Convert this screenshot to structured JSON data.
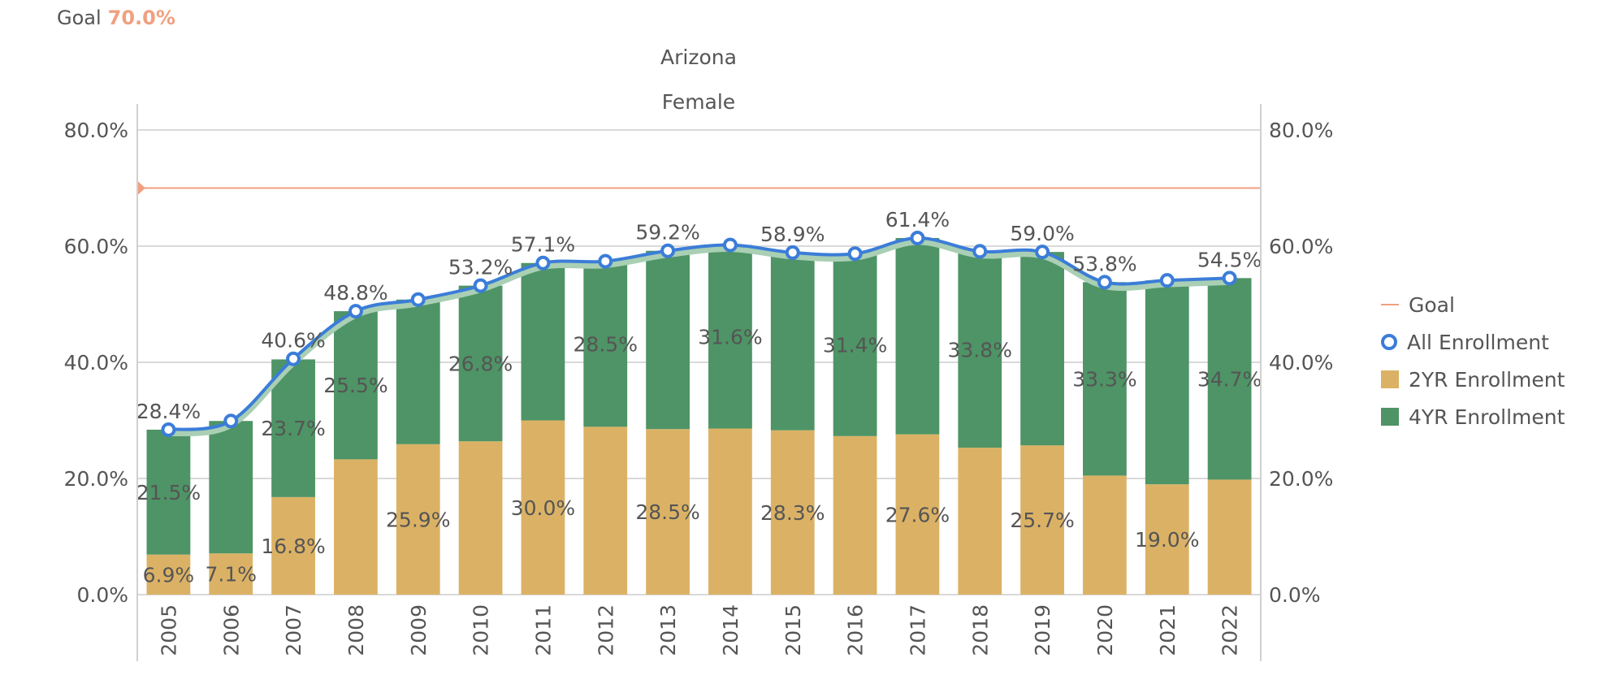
{
  "goal_readout": {
    "label": "Goal",
    "value": "70.0%"
  },
  "chart_data": {
    "type": "bar",
    "stacked": true,
    "title": "Arizona",
    "subtitle": "Female",
    "categories": [
      "2005",
      "2006",
      "2007",
      "2008",
      "2009",
      "2010",
      "2011",
      "2012",
      "2013",
      "2014",
      "2015",
      "2016",
      "2017",
      "2018",
      "2019",
      "2020",
      "2021",
      "2022"
    ],
    "ylim": [
      0,
      80
    ],
    "yticks": [
      "0.0%",
      "20.0%",
      "40.0%",
      "60.0%",
      "80.0%"
    ],
    "ytick_values": [
      0,
      20,
      40,
      60,
      80
    ],
    "secondary_yticks": [
      "0.0%",
      "20.0%",
      "40.0%",
      "60.0%",
      "80.0%"
    ],
    "grid": true,
    "legend_position": "right",
    "goal": {
      "name": "Goal",
      "value": 70.0,
      "color": "#f0a080"
    },
    "series": [
      {
        "name": "2YR Enrollment",
        "kind": "bar",
        "color": "#dbb265",
        "values": [
          6.9,
          7.1,
          16.8,
          23.3,
          25.9,
          26.4,
          30.0,
          28.9,
          28.5,
          28.6,
          28.3,
          27.3,
          27.6,
          25.3,
          25.7,
          20.5,
          19.0,
          19.8
        ],
        "labeled": [
          true,
          true,
          true,
          false,
          true,
          false,
          true,
          false,
          true,
          false,
          true,
          false,
          true,
          false,
          true,
          false,
          true,
          false
        ]
      },
      {
        "name": "4YR Enrollment",
        "kind": "bar",
        "color": "#4e9466",
        "values": [
          21.5,
          22.8,
          23.7,
          25.5,
          24.9,
          26.8,
          27.1,
          28.5,
          30.7,
          31.6,
          30.6,
          31.4,
          33.8,
          33.8,
          33.3,
          33.3,
          35.1,
          34.7
        ],
        "labeled": [
          true,
          false,
          true,
          true,
          false,
          true,
          false,
          true,
          false,
          true,
          false,
          true,
          false,
          true,
          false,
          true,
          false,
          true
        ]
      },
      {
        "name": "All Enrollment",
        "kind": "line",
        "color": "#3b7dd8",
        "values": [
          28.4,
          29.9,
          40.6,
          48.8,
          50.8,
          53.2,
          57.1,
          57.4,
          59.2,
          60.2,
          58.9,
          58.7,
          61.4,
          59.1,
          59.0,
          53.8,
          54.1,
          54.5
        ],
        "labeled": [
          true,
          false,
          true,
          true,
          false,
          true,
          true,
          false,
          true,
          false,
          true,
          false,
          true,
          false,
          true,
          true,
          false,
          true
        ]
      }
    ]
  }
}
